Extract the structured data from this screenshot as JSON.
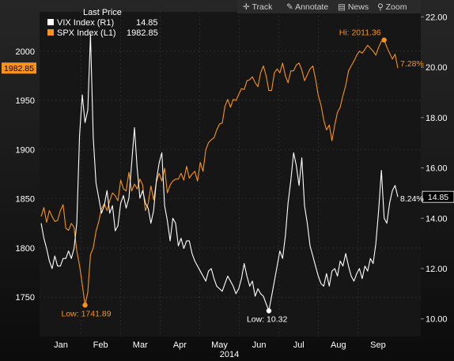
{
  "toolbar": {
    "items": [
      {
        "icon": "crosshair-icon",
        "label": "Track"
      },
      {
        "icon": "pencil-icon",
        "label": "Annotate"
      },
      {
        "icon": "news-icon",
        "label": "News"
      },
      {
        "icon": "zoom-icon",
        "label": "Zoom"
      }
    ]
  },
  "legend": {
    "header": "Last Price",
    "entries": [
      {
        "name": "VIX Index (R1)",
        "value": "14.85",
        "color": "#ffffff"
      },
      {
        "name": "SPX Index (L1)",
        "value": "1982.85",
        "color": "#f7931e"
      }
    ]
  },
  "colors": {
    "background": "#141414",
    "panel_top": "#1f1f1f",
    "spx": "#f7931e",
    "vix": "#ffffff",
    "grid": "#3a3a3a",
    "axis_text": "#ffffff",
    "label_bg": "#000000"
  },
  "chart_data": {
    "type": "line",
    "year_label": "2014",
    "x_month_labels": [
      "Jan",
      "Feb",
      "Mar",
      "Apr",
      "May",
      "Jun",
      "Jul",
      "Aug",
      "Sep"
    ],
    "y_left": {
      "ylim": [
        1710,
        2040
      ],
      "ticks": [
        "1750",
        "1800",
        "1850",
        "1900",
        "1950",
        "2000"
      ]
    },
    "y_right": {
      "ylim": [
        9.3,
        22.2
      ],
      "ticks": [
        "10.00",
        "12.00",
        "14.00",
        "16.00",
        "18.00",
        "20.00",
        "22.00"
      ]
    },
    "series": [
      {
        "name": "SPX Index (L1)",
        "axis": "left",
        "last_value": "1982.85",
        "change_label": "7.28%",
        "values": [
          1832,
          1841,
          1826,
          1838,
          1832,
          1827,
          1828,
          1838,
          1844,
          1820,
          1818,
          1825,
          1821,
          1797,
          1782,
          1763,
          1741.89,
          1755,
          1793,
          1800,
          1817,
          1827,
          1840,
          1845,
          1838,
          1848,
          1856,
          1853,
          1848,
          1869,
          1860,
          1858,
          1877,
          1858,
          1865,
          1860,
          1870,
          1864,
          1838,
          1845,
          1863,
          1849,
          1867,
          1876,
          1868,
          1881,
          1856,
          1864,
          1868,
          1870,
          1870,
          1876,
          1869,
          1883,
          1871,
          1875,
          1878,
          1868,
          1887,
          1878,
          1900,
          1907,
          1910,
          1912,
          1920,
          1926,
          1927,
          1944,
          1951,
          1943,
          1951,
          1950,
          1956,
          1962,
          1961,
          1970,
          1971,
          1974,
          1968,
          1964,
          1978,
          1985,
          1975,
          1960,
          1960,
          1978,
          1982,
          1978,
          1988,
          1975,
          1968,
          1980,
          1980,
          1986,
          1988,
          1981,
          1970,
          1976,
          1982,
          1985,
          1972,
          1955,
          1945,
          1930,
          1920,
          1925,
          1909,
          1925,
          1938,
          1943,
          1955,
          1965,
          1980,
          1985,
          1990,
          1996,
          2000,
          1998,
          2002,
          2006,
          2003,
          2000,
          1996,
          2004,
          2010,
          2011.36,
          2004,
          1998,
          1992,
          1997,
          1982.85
        ]
      },
      {
        "name": "VIX Index (R1)",
        "axis": "right",
        "last_value": "14.85",
        "change_label": "8.24%",
        "values": [
          13.8,
          13.2,
          12.8,
          12.3,
          12.0,
          12.5,
          12.1,
          12.1,
          12.4,
          12.4,
          12.7,
          12.4,
          12.8,
          13.8,
          17.3,
          18.9,
          17.8,
          18.3,
          21.3,
          17.2,
          15.4,
          14.8,
          14.2,
          14.5,
          15.1,
          14.2,
          14.5,
          13.5,
          13.7,
          14.6,
          14.9,
          14.4,
          14.8,
          16.2,
          17.6,
          16.0,
          14.8,
          15.1,
          14.6,
          14.4,
          13.8,
          14.3,
          15.5,
          16.2,
          16.6,
          14.5,
          13.9,
          13.1,
          14.0,
          13.8,
          12.9,
          13.2,
          12.8,
          13.1,
          13.1,
          12.6,
          12.3,
          12.1,
          11.9,
          11.7,
          11.5,
          11.9,
          12.0,
          11.6,
          11.3,
          11.2,
          11.1,
          11.4,
          11.7,
          11.5,
          11.3,
          11.0,
          11.2,
          11.6,
          12.2,
          11.7,
          11.3,
          11.5,
          10.9,
          11.2,
          11.0,
          10.9,
          10.6,
          10.32,
          10.9,
          11.5,
          12.1,
          12.7,
          12.4,
          13.3,
          14.6,
          15.5,
          16.6,
          16.1,
          15.3,
          16.4,
          14.5,
          13.8,
          12.9,
          12.5,
          12.1,
          11.7,
          11.4,
          11.3,
          11.8,
          11.3,
          11.9,
          12.0,
          11.7,
          12.3,
          12.1,
          12.6,
          12.1,
          11.7,
          11.5,
          11.8,
          12.0,
          11.6,
          12.1,
          11.9,
          12.4,
          12.2,
          13.0,
          14.3,
          15.9,
          14.0,
          13.8,
          14.6,
          15.1,
          15.3,
          14.85
        ]
      }
    ],
    "annotations": [
      {
        "text": "Hi: 2011.36",
        "series": "SPX Index (L1)",
        "point_index": 125,
        "color": "#f7931e"
      },
      {
        "text": "Low: 1741.89",
        "series": "SPX Index (L1)",
        "point_index": 16,
        "color": "#f7931e"
      },
      {
        "text": "Low: 10.32",
        "series": "VIX Index (R1)",
        "point_index": 83,
        "color": "#ffffff"
      }
    ],
    "grid": true
  }
}
